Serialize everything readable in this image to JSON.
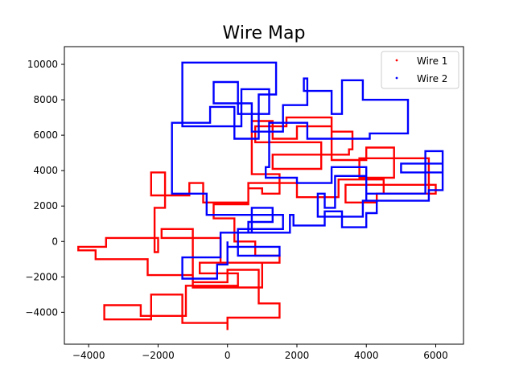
{
  "chart_data": {
    "type": "line",
    "title": "Wire Map",
    "xlabel": "",
    "ylabel": "",
    "xlim": [
      -4700,
      6800
    ],
    "ylim": [
      -5800,
      11000
    ],
    "xticks": [
      -4000,
      -2000,
      0,
      2000,
      4000,
      6000
    ],
    "xtick_labels": [
      "−4000",
      "−2000",
      "0",
      "2000",
      "4000",
      "6000"
    ],
    "yticks": [
      -4000,
      -2000,
      0,
      2000,
      4000,
      6000,
      8000,
      10000
    ],
    "ytick_labels": [
      "−4000",
      "−2000",
      "0",
      "2000",
      "4000",
      "6000",
      "8000",
      "10000"
    ],
    "grid": false,
    "legend_position": "top-right",
    "series": [
      {
        "name": "Wire 1",
        "color": "#ff0000",
        "marker": "point",
        "x": [
          0,
          0,
          -1300,
          -1300,
          -2200,
          -2200,
          -3550,
          -3550,
          -2500,
          -2500,
          -1200,
          -1200,
          300,
          300,
          -800,
          -800,
          1000,
          1000,
          -1000,
          -1000,
          -2300,
          -2300,
          -3800,
          -3800,
          -4300,
          -4300,
          -3500,
          -3500,
          -2000,
          -2000,
          -2100,
          -2100,
          -1800,
          -1800,
          -2200,
          -2200,
          -1100,
          -1100,
          -700,
          -700,
          600,
          600,
          1000,
          1000,
          1500,
          1500,
          700,
          700,
          1300,
          1300,
          2000,
          2000,
          3000,
          3000,
          3600,
          3600,
          3500,
          3500,
          1300,
          1300,
          2700,
          2700,
          800,
          800,
          1700,
          1700,
          3000,
          3000,
          4000,
          4000,
          4800,
          4800,
          3800,
          3800,
          5800,
          5800,
          4300,
          4300,
          3400,
          3400,
          6000,
          6000,
          4500,
          4500,
          3200,
          3200,
          2000,
          2000,
          600,
          600,
          -400,
          -400,
          200,
          200,
          800,
          800,
          1500,
          1500,
          -200,
          -200,
          -1900,
          -1900,
          -1000,
          -1000,
          0,
          0,
          900,
          900,
          1500,
          1500,
          0,
          0
        ],
        "y": [
          -5000,
          -4600,
          -4600,
          -3000,
          -3000,
          -4400,
          -4400,
          -3600,
          -3600,
          -4200,
          -4200,
          -2500,
          -2500,
          -1800,
          -1800,
          -1200,
          -1200,
          -2600,
          -2600,
          -1900,
          -1900,
          -1000,
          -1000,
          -500,
          -500,
          -300,
          -300,
          200,
          200,
          -600,
          -600,
          1900,
          1900,
          3900,
          3900,
          2600,
          2600,
          3300,
          3300,
          2200,
          2200,
          3000,
          3000,
          2700,
          2700,
          3800,
          3800,
          6800,
          6800,
          5800,
          5800,
          6500,
          6500,
          6200,
          6200,
          5200,
          5200,
          4900,
          4900,
          4100,
          4100,
          5600,
          5600,
          6500,
          6500,
          7000,
          7000,
          4600,
          4600,
          5300,
          5300,
          3600,
          3600,
          4700,
          4700,
          2700,
          2700,
          2200,
          2200,
          3200,
          3200,
          2700,
          2700,
          3500,
          3500,
          2500,
          2500,
          3300,
          3300,
          2100,
          2100,
          1300,
          1300,
          0,
          0,
          -800,
          -800,
          -1200,
          -1200,
          200,
          200,
          700,
          700,
          -2300,
          -2300,
          -1600,
          -1600,
          -3500,
          -3500,
          -4300,
          -4300,
          -5000
        ]
      },
      {
        "name": "Wire 2",
        "color": "#0000ff",
        "marker": "point",
        "x": [
          0,
          0,
          1500,
          1500,
          300,
          300,
          1600,
          1600,
          -600,
          -600,
          -1600,
          -1600,
          -500,
          -500,
          200,
          200,
          900,
          900,
          1400,
          1400,
          -1300,
          -1300,
          400,
          400,
          1200,
          1200,
          300,
          300,
          -400,
          -400,
          700,
          700,
          1600,
          1600,
          2300,
          2300,
          2200,
          2200,
          3000,
          3000,
          3300,
          3300,
          3900,
          3900,
          5200,
          5200,
          4100,
          4100,
          2300,
          2300,
          1200,
          1200,
          1100,
          1100,
          2000,
          2000,
          3000,
          3000,
          4000,
          4000,
          5700,
          5700,
          6200,
          6200,
          5000,
          5000,
          6200,
          6200,
          5800,
          5800,
          4000,
          4000,
          3100,
          3100,
          2800,
          2800,
          2600,
          2600,
          3900,
          3900,
          4300,
          4300,
          4000,
          4000,
          3300,
          3300,
          2800,
          2800,
          1900,
          1900,
          1800,
          1800,
          600,
          600,
          1300,
          1300,
          700,
          700,
          -200,
          -200,
          -1300,
          -1300,
          -300,
          -300,
          0,
          0
        ],
        "y": [
          0,
          -300,
          -300,
          -800,
          -800,
          700,
          700,
          1500,
          1500,
          2700,
          2700,
          6700,
          6700,
          7600,
          7600,
          5800,
          5800,
          8300,
          8300,
          10100,
          10100,
          6500,
          6500,
          8600,
          8600,
          7200,
          7200,
          9000,
          9000,
          7800,
          7800,
          6200,
          6200,
          7700,
          7700,
          9200,
          9200,
          8500,
          8500,
          7200,
          7200,
          9100,
          9100,
          8000,
          8000,
          6100,
          6100,
          5800,
          5800,
          6700,
          6700,
          4200,
          4200,
          3600,
          3600,
          3300,
          3300,
          4200,
          4200,
          2700,
          2700,
          5100,
          5100,
          3900,
          3900,
          4400,
          4400,
          2900,
          2900,
          2300,
          2300,
          3700,
          3700,
          1900,
          1900,
          2700,
          2700,
          1400,
          1400,
          2300,
          2300,
          1600,
          1600,
          800,
          800,
          1700,
          1700,
          900,
          900,
          1500,
          1500,
          500,
          500,
          1100,
          1100,
          1900,
          1900,
          500,
          500,
          -900,
          -900,
          -2100,
          -2100,
          -1300,
          -1300,
          0
        ]
      }
    ]
  }
}
